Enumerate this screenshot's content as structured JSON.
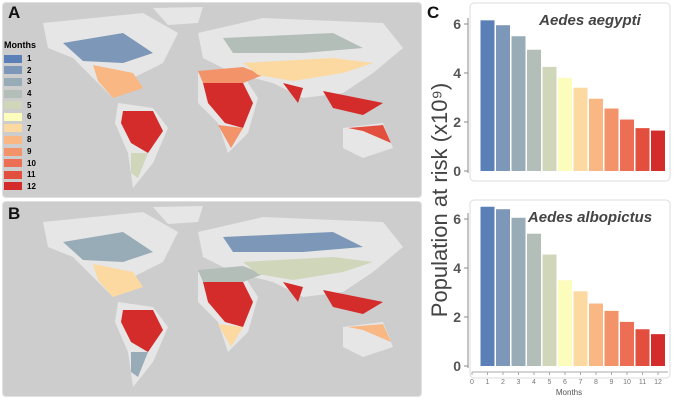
{
  "panels": {
    "a": "A",
    "b": "B",
    "c": "C"
  },
  "legend": {
    "title": "Months",
    "items": [
      "1",
      "2",
      "3",
      "4",
      "5",
      "6",
      "7",
      "8",
      "9",
      "10",
      "11",
      "12"
    ]
  },
  "month_colors": [
    "#5b80b8",
    "#7d97b8",
    "#98acb8",
    "#b3beb8",
    "#cfd6b9",
    "#fcfcbc",
    "#fcd9a1",
    "#f8b783",
    "#f29369",
    "#ec6f55",
    "#e24f3f",
    "#d42b2b"
  ],
  "chart_data": [
    {
      "type": "bar",
      "title": "Aedes aegypti",
      "ylabel": "Population at risk (x10⁹)",
      "categories": [
        1,
        2,
        3,
        4,
        5,
        6,
        7,
        8,
        9,
        10,
        11,
        12
      ],
      "values": [
        6.15,
        5.95,
        5.5,
        4.95,
        4.25,
        3.8,
        3.4,
        2.95,
        2.55,
        2.1,
        1.75,
        1.65
      ],
      "ylim": [
        0,
        6.6
      ],
      "yticks": [
        0,
        2,
        4,
        6
      ]
    },
    {
      "type": "bar",
      "title": "Aedes albopictus",
      "xlabel": "Months",
      "ylabel": "Population at risk (x10⁹)",
      "categories": [
        1,
        2,
        3,
        4,
        5,
        6,
        7,
        8,
        9,
        10,
        11,
        12
      ],
      "values": [
        6.5,
        6.4,
        6.05,
        5.4,
        4.55,
        3.5,
        3.05,
        2.55,
        2.25,
        1.8,
        1.5,
        1.3
      ],
      "ylim": [
        0,
        6.6
      ],
      "yticks": [
        0,
        2,
        4,
        6
      ],
      "xticks": [
        0,
        1,
        2,
        3,
        4,
        5,
        6,
        7,
        8,
        9,
        10,
        11,
        12
      ]
    }
  ]
}
